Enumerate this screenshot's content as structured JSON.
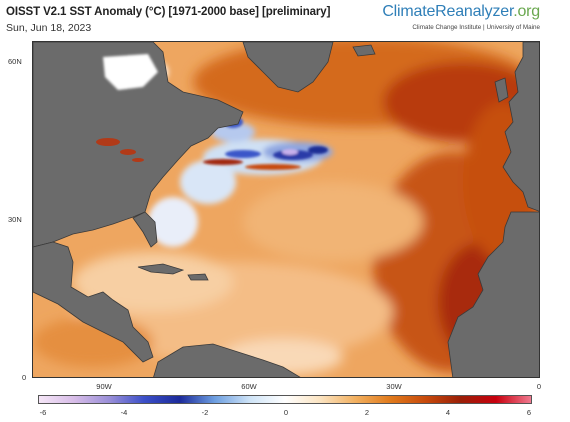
{
  "header": {
    "title": "OISST V2.1 SST Anomaly (°C) [1971-2000 base] [preliminary]",
    "date": "Sun, Jun 18, 2023"
  },
  "brand": {
    "name_part1": "ClimateReanalyzer",
    "name_part2": ".org",
    "institute": "Climate Change Institute | University of Maine"
  },
  "map": {
    "lat_labels": [
      "60N",
      "30N",
      "0"
    ],
    "lon_labels": [
      "90W",
      "60W",
      "30W",
      "0"
    ],
    "land_color": "#6b6b6b",
    "ice_color": "#ffffff"
  },
  "colorbar": {
    "ticks": [
      "-6",
      "-4",
      "-2",
      "0",
      "2",
      "4",
      "6"
    ],
    "colors": [
      "#f5e6f7",
      "#d8bde8",
      "#9a8fd8",
      "#3b4fc8",
      "#1c2a9a",
      "#6d9ee0",
      "#cfe4f7",
      "#ffffff",
      "#fbe4c2",
      "#f2b060",
      "#e07a1c",
      "#c74a0c",
      "#9a1f07",
      "#c8000e",
      "#f07a90"
    ]
  }
}
